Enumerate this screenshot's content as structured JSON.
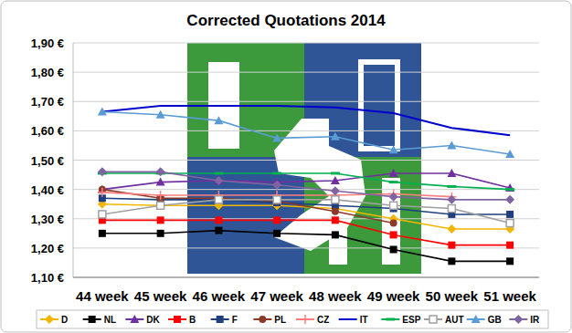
{
  "chart_data": {
    "type": "line",
    "title": "Corrected Quotations 2014",
    "categories": [
      "44 week",
      "45 week",
      "46 week",
      "47 week",
      "48 week",
      "49 week",
      "50 week",
      "51 week"
    ],
    "ylim": [
      1.1,
      1.9
    ],
    "yticks": [
      {
        "value": 1.1,
        "label": "1,10 €"
      },
      {
        "value": 1.2,
        "label": "1,20 €"
      },
      {
        "value": 1.3,
        "label": "1,30 €"
      },
      {
        "value": 1.4,
        "label": "1,40 €"
      },
      {
        "value": 1.5,
        "label": "1,50 €"
      },
      {
        "value": 1.6,
        "label": "1,60 €"
      },
      {
        "value": 1.7,
        "label": "1,70 €"
      },
      {
        "value": 1.8,
        "label": "1,80 €"
      },
      {
        "value": 1.9,
        "label": "1,90 €"
      }
    ],
    "grid": true,
    "legend": "bottom",
    "series": [
      {
        "name": "D",
        "color": "#f2b600",
        "marker": "diamond",
        "values": [
          1.35,
          1.345,
          1.345,
          1.345,
          1.335,
          1.3,
          1.265,
          1.265
        ]
      },
      {
        "name": "NL",
        "color": "#000000",
        "marker": "square",
        "values": [
          1.25,
          1.25,
          1.26,
          1.25,
          1.245,
          1.195,
          1.155,
          1.155
        ]
      },
      {
        "name": "DK",
        "color": "#7030a0",
        "marker": "triangle",
        "values": [
          1.4,
          1.425,
          1.43,
          1.425,
          1.43,
          1.455,
          1.455,
          1.405
        ]
      },
      {
        "name": "B",
        "color": "#ff0000",
        "marker": "square",
        "values": [
          1.295,
          1.295,
          1.295,
          1.295,
          1.295,
          1.245,
          1.21,
          1.21
        ]
      },
      {
        "name": "F",
        "color": "#1f3f7f",
        "marker": "square",
        "values": [
          1.37,
          1.365,
          1.365,
          1.355,
          1.345,
          1.335,
          1.315,
          1.315
        ]
      },
      {
        "name": "PL",
        "color": "#8b3a2a",
        "marker": "circle",
        "values": [
          1.4,
          1.37,
          1.37,
          1.36,
          1.325,
          1.285,
          null,
          null
        ]
      },
      {
        "name": "CZ",
        "color": "#ff7f7f",
        "marker": "plus",
        "values": [
          1.39,
          1.38,
          1.38,
          1.38,
          1.38,
          1.385,
          1.375,
          null
        ]
      },
      {
        "name": "IT",
        "color": "#0000cc",
        "marker": "none",
        "values": [
          1.665,
          1.685,
          1.685,
          1.685,
          1.68,
          1.66,
          1.61,
          1.585
        ]
      },
      {
        "name": "ESP",
        "color": "#00b050",
        "marker": "dash",
        "values": [
          1.455,
          1.455,
          1.455,
          1.455,
          1.455,
          1.425,
          1.41,
          1.4
        ]
      },
      {
        "name": "AUT",
        "color": "#a0a0a0",
        "marker": "square-open",
        "values": [
          1.315,
          1.345,
          1.365,
          1.365,
          1.365,
          1.345,
          1.335,
          1.285
        ]
      },
      {
        "name": "GB",
        "color": "#5b9bd5",
        "marker": "triangle",
        "values": [
          1.665,
          1.655,
          1.635,
          1.575,
          1.58,
          1.535,
          1.55,
          1.52
        ]
      },
      {
        "name": "IR",
        "color": "#8064a2",
        "marker": "diamond",
        "values": [
          1.46,
          1.46,
          1.43,
          1.415,
          1.395,
          1.375,
          1.365,
          1.365
        ]
      }
    ]
  }
}
